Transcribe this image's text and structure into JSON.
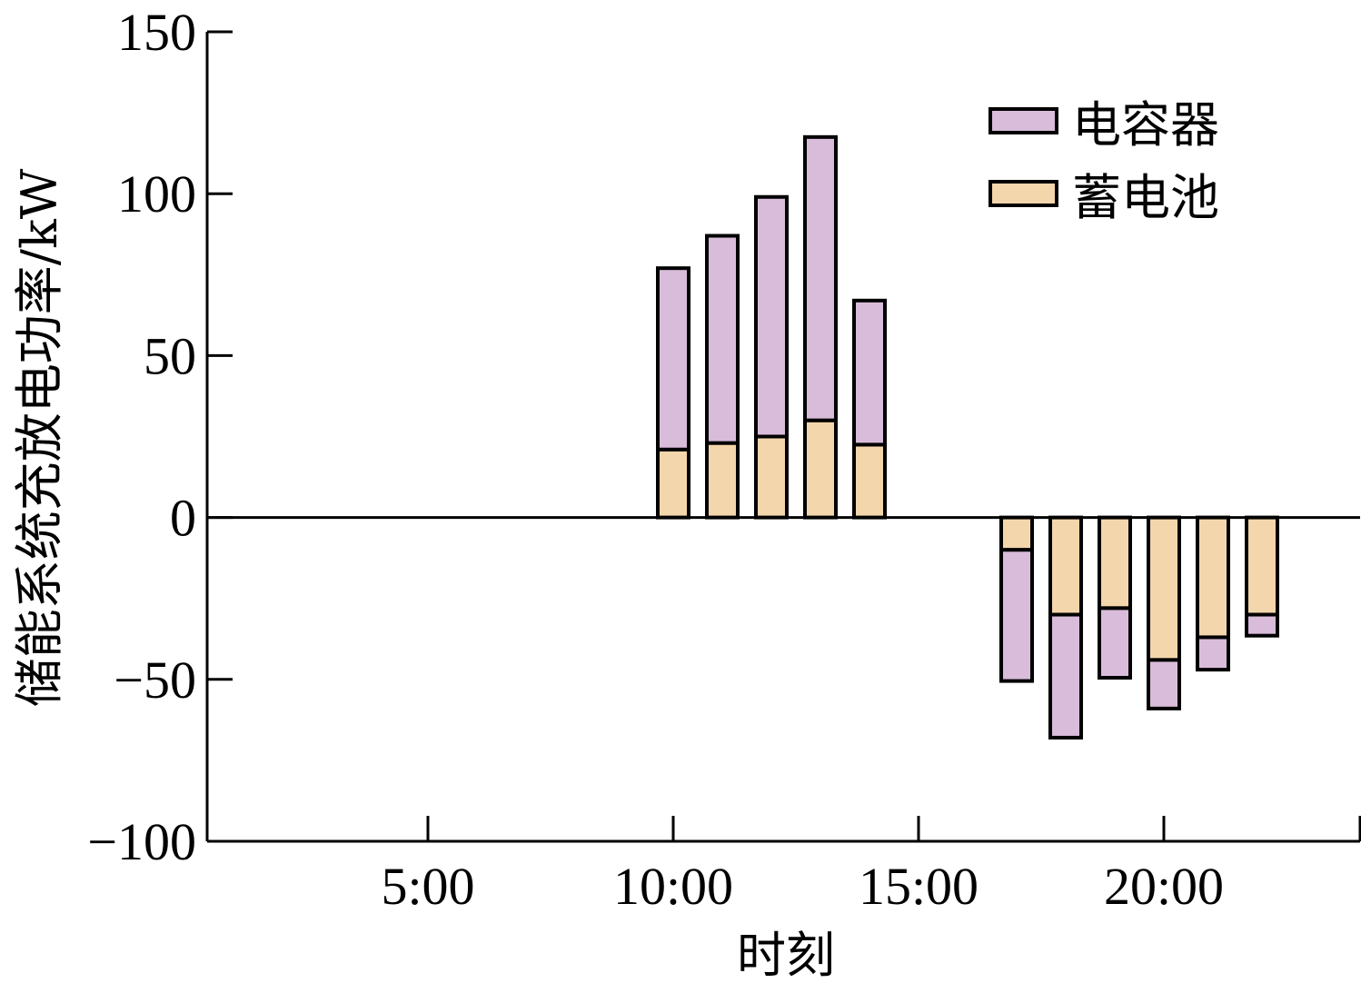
{
  "chart_data": {
    "type": "bar",
    "stacked": true,
    "title": "",
    "xlabel": "时刻",
    "ylabel": "储能系统充放电功率/kW",
    "xlim": [
      0.5,
      24
    ],
    "ylim": [
      -100,
      150
    ],
    "x_ticks": [
      {
        "value": 5,
        "label": "5:00"
      },
      {
        "value": 10,
        "label": "10:00"
      },
      {
        "value": 15,
        "label": "15:00"
      },
      {
        "value": 20,
        "label": "20:00"
      }
    ],
    "y_ticks": [
      {
        "value": 150,
        "label": "150"
      },
      {
        "value": 100,
        "label": "100"
      },
      {
        "value": 50,
        "label": "50"
      },
      {
        "value": 0,
        "label": "0"
      },
      {
        "value": -50,
        "label": "−50"
      },
      {
        "value": -100,
        "label": "−100"
      }
    ],
    "grid": false,
    "legend_position": "top-right",
    "x": [
      10,
      11,
      12,
      13,
      14,
      17,
      18,
      19,
      20,
      21,
      22
    ],
    "series": [
      {
        "name": "蓄电池",
        "color": "#f3d6ab",
        "values": [
          21,
          23,
          25,
          30,
          22.5,
          -10,
          -30,
          -28,
          -44,
          -37,
          -30
        ]
      },
      {
        "name": "电容器",
        "color": "#d8bcd9",
        "values": [
          56,
          64,
          74,
          87.5,
          44.5,
          -40.5,
          -38,
          -21.5,
          -15,
          -10,
          -6.5
        ]
      }
    ],
    "legend_order": [
      1,
      0
    ]
  }
}
